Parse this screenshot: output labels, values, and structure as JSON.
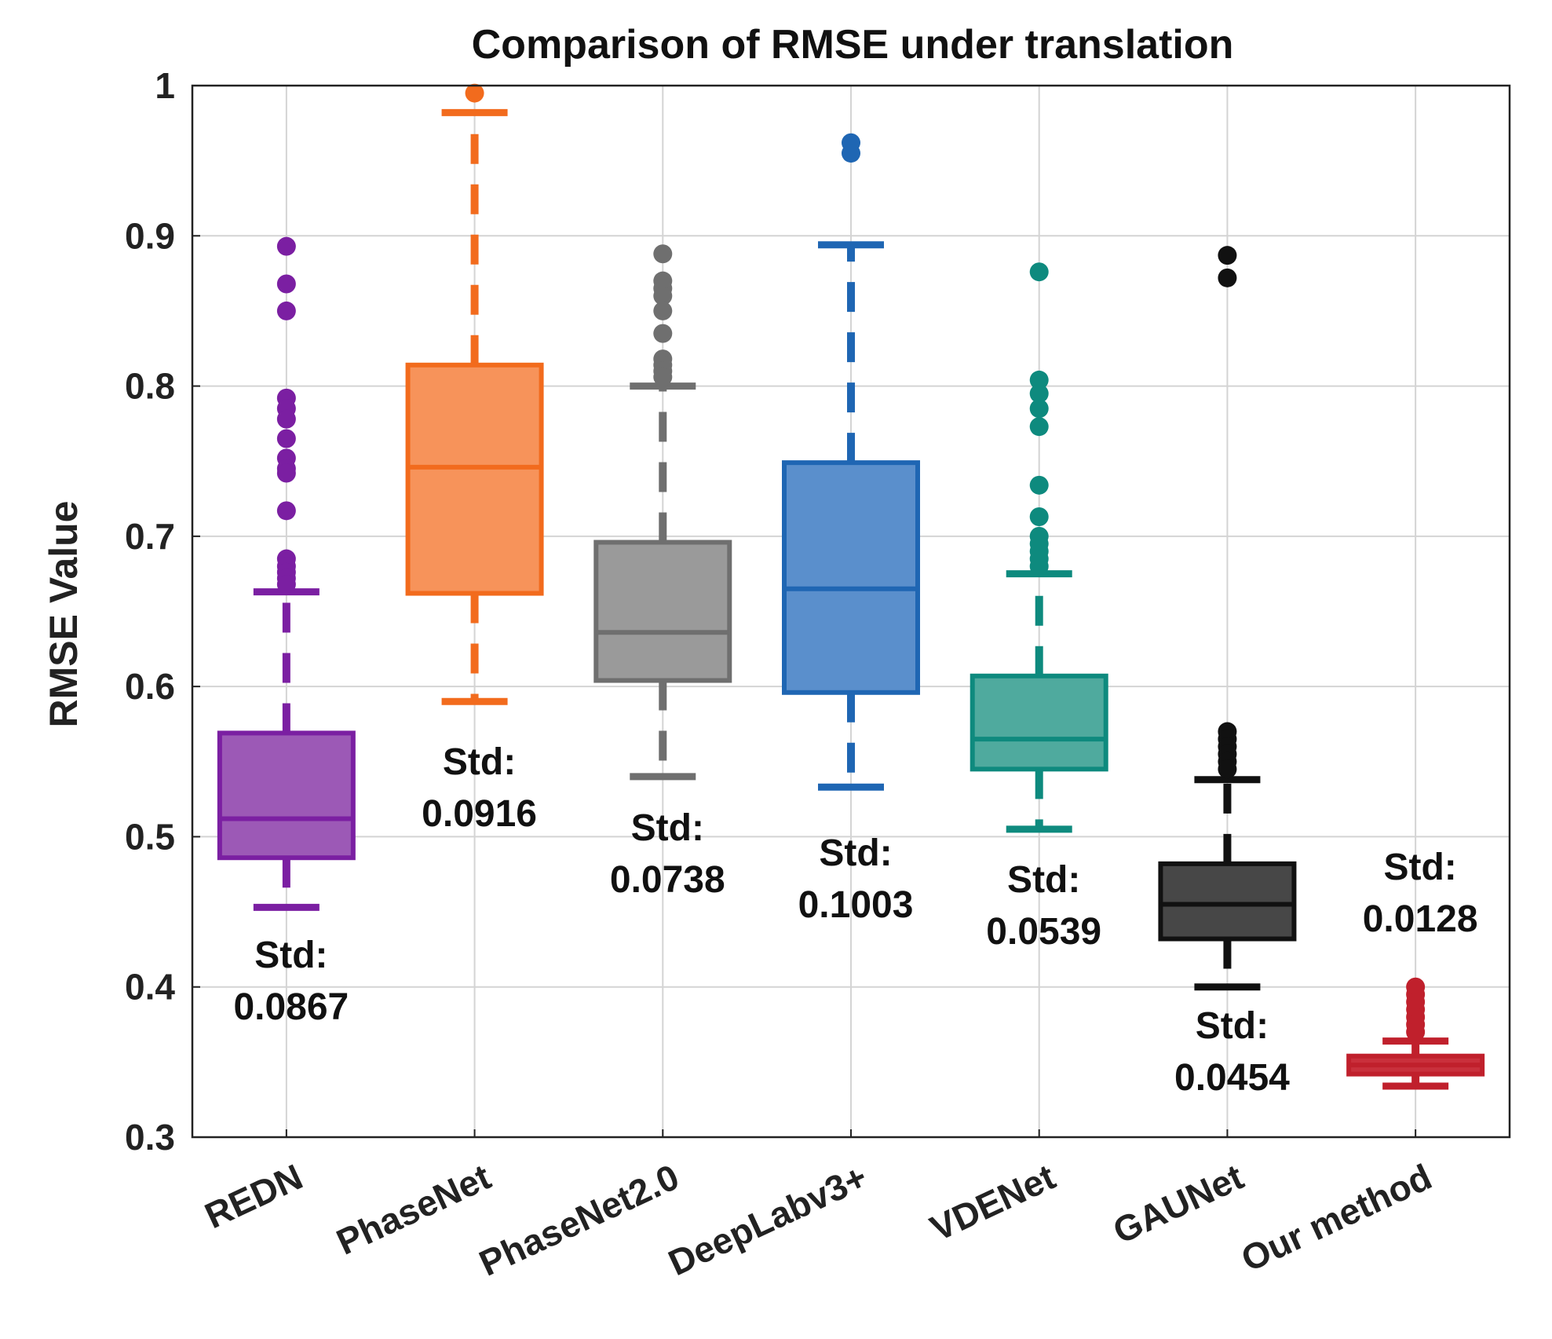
{
  "chart_data": {
    "type": "box",
    "title": "Comparison of RMSE under translation",
    "xlabel": "",
    "ylabel": "RMSE Value",
    "ylim": [
      0.3,
      1.0
    ],
    "yticks": [
      "0.3",
      "0.4",
      "0.5",
      "0.6",
      "0.7",
      "0.8",
      "0.9",
      "1"
    ],
    "grid": true,
    "categories": [
      "REDN",
      "PhaseNet",
      "PhaseNet2.0",
      "DeepLabv3+",
      "VDENet",
      "GAUNet",
      "Our method"
    ],
    "series": [
      {
        "name": "REDN",
        "color": "#7B1FA2",
        "fill": "#9C59B6",
        "q1": 0.486,
        "median": 0.512,
        "q3": 0.569,
        "whisker_low": 0.453,
        "whisker_high": 0.663,
        "outliers": [
          0.893,
          0.868,
          0.85,
          0.792,
          0.785,
          0.778,
          0.765,
          0.752,
          0.745,
          0.742,
          0.717,
          0.685,
          0.68,
          0.676,
          0.672,
          0.668
        ],
        "std_label": "Std:",
        "std_value": "0.0867",
        "label_position": "below"
      },
      {
        "name": "PhaseNet",
        "color": "#F26B1D",
        "fill": "#F7935A",
        "q1": 0.662,
        "median": 0.746,
        "q3": 0.814,
        "whisker_low": 0.59,
        "whisker_high": 0.982,
        "outliers": [
          0.995
        ],
        "std_label": "Std:",
        "std_value": "0.0916",
        "label_position": "below"
      },
      {
        "name": "PhaseNet2.0",
        "color": "#6F6F6F",
        "fill": "#9A9A9A",
        "q1": 0.604,
        "median": 0.636,
        "q3": 0.696,
        "whisker_low": 0.54,
        "whisker_high": 0.8,
        "outliers": [
          0.888,
          0.87,
          0.865,
          0.86,
          0.85,
          0.835,
          0.818,
          0.814,
          0.81,
          0.806
        ],
        "std_label": "Std:",
        "std_value": "0.0738",
        "label_position": "below"
      },
      {
        "name": "DeepLabv3+",
        "color": "#1F66B3",
        "fill": "#5A8FCC",
        "q1": 0.596,
        "median": 0.665,
        "q3": 0.749,
        "whisker_low": 0.533,
        "whisker_high": 0.894,
        "outliers": [
          0.962,
          0.955
        ],
        "std_label": "Std:",
        "std_value": "0.1003",
        "label_position": "below"
      },
      {
        "name": "VDENet",
        "color": "#0E8A7E",
        "fill": "#4FAA9E",
        "q1": 0.545,
        "median": 0.565,
        "q3": 0.607,
        "whisker_low": 0.505,
        "whisker_high": 0.675,
        "outliers": [
          0.876,
          0.804,
          0.795,
          0.785,
          0.773,
          0.734,
          0.713,
          0.7,
          0.695,
          0.69,
          0.685,
          0.68
        ],
        "std_label": "Std:",
        "std_value": "0.0539",
        "label_position": "below"
      },
      {
        "name": "GAUNet",
        "color": "#111111",
        "fill": "#474747",
        "q1": 0.432,
        "median": 0.455,
        "q3": 0.482,
        "whisker_low": 0.4,
        "whisker_high": 0.538,
        "outliers": [
          0.887,
          0.872,
          0.57,
          0.565,
          0.56,
          0.555,
          0.55,
          0.545
        ],
        "std_label": "Std:",
        "std_value": "0.0454",
        "label_position": "below"
      },
      {
        "name": "Our method",
        "color": "#C0202C",
        "fill": "#C9303C",
        "q1": 0.342,
        "median": 0.348,
        "q3": 0.354,
        "whisker_low": 0.334,
        "whisker_high": 0.364,
        "outliers": [
          0.4,
          0.395,
          0.39,
          0.385,
          0.38,
          0.375,
          0.37
        ],
        "std_label": "Std:",
        "std_value": "0.0128",
        "label_position": "above"
      }
    ]
  }
}
